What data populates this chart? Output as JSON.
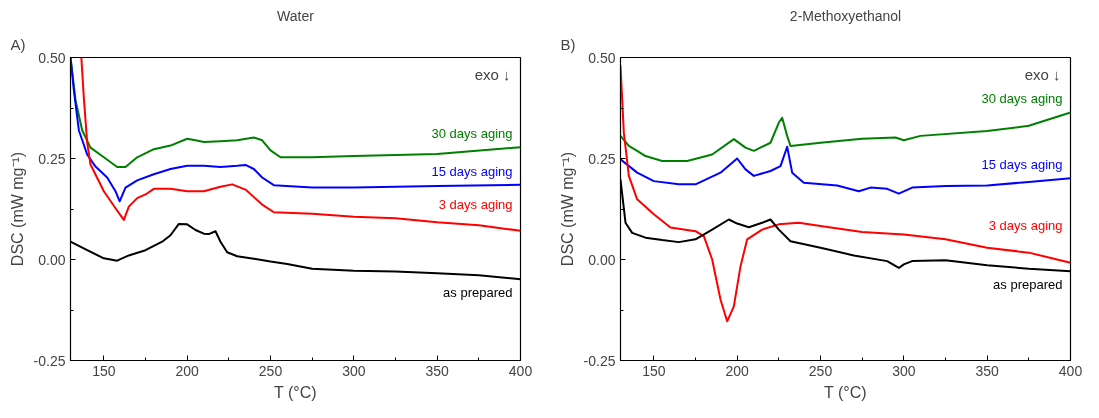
{
  "chart_data": [
    {
      "type": "line",
      "title": "Water",
      "xlabel": "T (°C)",
      "ylabel": "DSC (mW mg⁻¹)",
      "annotations": [
        "A)",
        "exo ↓"
      ],
      "xlim": [
        130,
        400
      ],
      "ylim": [
        -0.25,
        0.5
      ],
      "xticks": [
        150,
        200,
        250,
        300,
        350,
        400
      ],
      "yticks": [
        {
          "value": -0.25,
          "label": "-0.25"
        },
        {
          "value": 0,
          "label": "0.00"
        },
        {
          "value": 0.25,
          "label": "0.25"
        },
        {
          "value": 0.5,
          "label": "0.50"
        }
      ],
      "grid": false,
      "series": [
        {
          "name": "30 days aging",
          "color": "#008000",
          "x": [
            130,
            133,
            137,
            142,
            150,
            158,
            163,
            170,
            180,
            190,
            200,
            205,
            210,
            220,
            230,
            240,
            245,
            250,
            256,
            275,
            300,
            350,
            400
          ],
          "values": [
            0.5,
            0.395,
            0.32,
            0.277,
            0.253,
            0.229,
            0.229,
            0.253,
            0.273,
            0.282,
            0.299,
            0.295,
            0.291,
            0.293,
            0.295,
            0.302,
            0.295,
            0.27,
            0.253,
            0.253,
            0.256,
            0.261,
            0.278
          ]
        },
        {
          "name": "15 days aging",
          "color": "#0000ff",
          "x": [
            130,
            132,
            135,
            140,
            145,
            152,
            157,
            159.5,
            163,
            170,
            180,
            190,
            200,
            210,
            220,
            230,
            235,
            240,
            245,
            252,
            275,
            300,
            350,
            400
          ],
          "values": [
            0.5,
            0.42,
            0.32,
            0.26,
            0.23,
            0.203,
            0.169,
            0.144,
            0.178,
            0.196,
            0.211,
            0.224,
            0.232,
            0.232,
            0.229,
            0.232,
            0.234,
            0.224,
            0.203,
            0.184,
            0.178,
            0.178,
            0.182,
            0.185
          ]
        },
        {
          "name": "3 days aging",
          "color": "#ff0000",
          "x": [
            136.5,
            138,
            140,
            142,
            150,
            157,
            162,
            165,
            170,
            175,
            180,
            190,
            200,
            210,
            220,
            227,
            235,
            245,
            252,
            275,
            300,
            325,
            350,
            375,
            400
          ],
          "values": [
            0.5,
            0.4,
            0.29,
            0.235,
            0.169,
            0.127,
            0.098,
            0.131,
            0.152,
            0.161,
            0.175,
            0.175,
            0.169,
            0.169,
            0.18,
            0.186,
            0.173,
            0.136,
            0.117,
            0.113,
            0.106,
            0.102,
            0.092,
            0.085,
            0.071
          ]
        },
        {
          "name": "as prepared",
          "color": "#000000",
          "x": [
            130,
            140,
            150,
            158,
            165,
            175,
            185,
            190,
            195,
            200,
            205,
            210,
            213,
            217,
            220,
            224,
            230,
            240,
            250,
            260,
            275,
            300,
            325,
            350,
            375,
            400
          ],
          "values": [
            0.044,
            0.023,
            0.003,
            -0.003,
            0.01,
            0.023,
            0.044,
            0.06,
            0.088,
            0.087,
            0.073,
            0.064,
            0.063,
            0.07,
            0.044,
            0.018,
            0.008,
            0.002,
            -0.005,
            -0.011,
            -0.023,
            -0.028,
            -0.03,
            -0.034,
            -0.039,
            -0.049
          ]
        }
      ]
    },
    {
      "type": "line",
      "title": "2-Methoxyethanol",
      "xlabel": "T (°C)",
      "ylabel": "DSC (mW mg⁻¹)",
      "annotations": [
        "B)",
        "exo ↓"
      ],
      "xlim": [
        130,
        400
      ],
      "ylim": [
        -0.25,
        0.5
      ],
      "xticks": [
        150,
        200,
        250,
        300,
        350,
        400
      ],
      "yticks": [
        {
          "value": -0.25,
          "label": "-0.25"
        },
        {
          "value": 0,
          "label": "0.00"
        },
        {
          "value": 0.25,
          "label": "0.25"
        },
        {
          "value": 0.5,
          "label": "0.50"
        }
      ],
      "grid": false,
      "series": [
        {
          "name": "30 days aging",
          "color": "#008000",
          "x": [
            130,
            135,
            140,
            145,
            155,
            170,
            185,
            198,
            205,
            210,
            220,
            225,
            227,
            230,
            232,
            250,
            275,
            295,
            300,
            310,
            350,
            375,
            400
          ],
          "values": [
            0.306,
            0.281,
            0.269,
            0.256,
            0.244,
            0.244,
            0.26,
            0.298,
            0.277,
            0.269,
            0.289,
            0.339,
            0.351,
            0.306,
            0.281,
            0.289,
            0.299,
            0.302,
            0.295,
            0.306,
            0.318,
            0.331,
            0.364
          ]
        },
        {
          "name": "15 days aging",
          "color": "#0000ff",
          "x": [
            130,
            140,
            150,
            165,
            175,
            190,
            200,
            205,
            210,
            220,
            226,
            230,
            233,
            240,
            260,
            273,
            280,
            290,
            297,
            305,
            325,
            350,
            375,
            400
          ],
          "values": [
            0.248,
            0.215,
            0.194,
            0.186,
            0.186,
            0.215,
            0.25,
            0.223,
            0.207,
            0.219,
            0.231,
            0.279,
            0.215,
            0.19,
            0.183,
            0.169,
            0.178,
            0.175,
            0.163,
            0.178,
            0.182,
            0.183,
            0.192,
            0.201
          ]
        },
        {
          "name": "3 days aging",
          "color": "#ff0000",
          "x": [
            130,
            132,
            135,
            140,
            150,
            160,
            170,
            175,
            180,
            185,
            190,
            194,
            198,
            202,
            206,
            215,
            225,
            237,
            250,
            275,
            300,
            325,
            350,
            375,
            400
          ],
          "values": [
            0.48,
            0.314,
            0.207,
            0.149,
            0.112,
            0.079,
            0.073,
            0.07,
            0.058,
            0,
            -0.099,
            -0.153,
            -0.116,
            -0.017,
            0.05,
            0.074,
            0.087,
            0.091,
            0.083,
            0.068,
            0.062,
            0.05,
            0.029,
            0.017,
            -0.008
          ]
        },
        {
          "name": "as prepared",
          "color": "#000000",
          "x": [
            130,
            133,
            137,
            145,
            155,
            165,
            175,
            185,
            195,
            200,
            207,
            215,
            220,
            225,
            232,
            250,
            270,
            290,
            297,
            300,
            305,
            325,
            350,
            375,
            400
          ],
          "values": [
            0.198,
            0.091,
            0.066,
            0.054,
            0.048,
            0.043,
            0.05,
            0.074,
            0.099,
            0.089,
            0.08,
            0.091,
            0.099,
            0.074,
            0.045,
            0.029,
            0.01,
            -0.004,
            -0.021,
            -0.012,
            -0.004,
            -0.002,
            -0.014,
            -0.023,
            -0.029
          ]
        }
      ]
    }
  ]
}
